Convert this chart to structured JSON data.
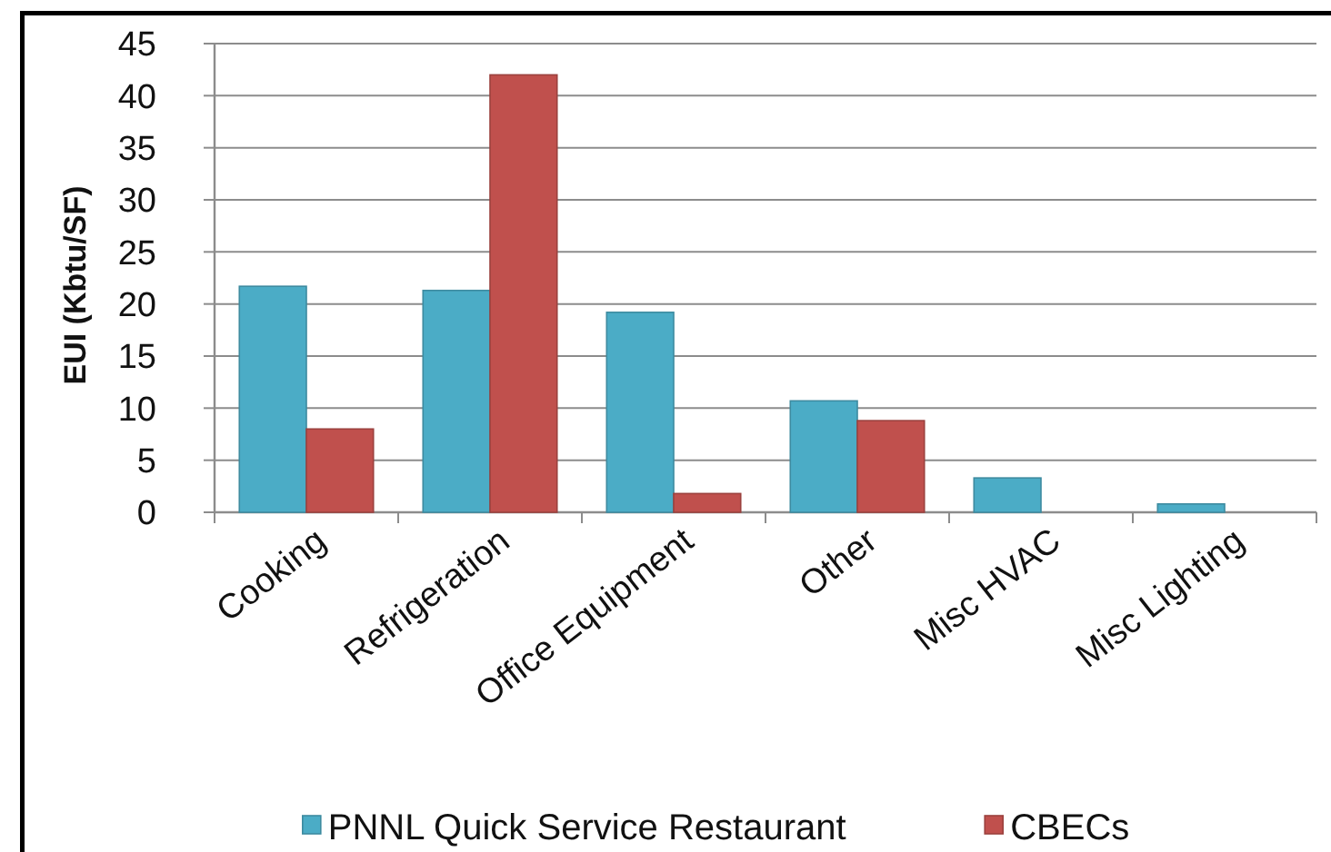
{
  "chart_data": {
    "type": "bar",
    "ylabel": "EUI (Kbtu/SF)",
    "categories": [
      "Cooking",
      "Refrigeration",
      "Office Equipment",
      "Other",
      "Misc HVAC",
      "Misc Lighting"
    ],
    "series": [
      {
        "name": "PNNL Quick Service Restaurant",
        "color": "#4bacc6",
        "values": [
          21.7,
          21.3,
          19.2,
          10.7,
          3.3,
          0.8
        ]
      },
      {
        "name": "CBECs",
        "color": "#c0504d",
        "values": [
          8,
          42,
          1.8,
          8.8,
          null,
          null
        ]
      }
    ],
    "ylim": [
      0,
      45
    ],
    "yticks": [
      0,
      5,
      10,
      15,
      20,
      25,
      30,
      35,
      40,
      45
    ],
    "grid": "y",
    "legend": "bottom"
  }
}
